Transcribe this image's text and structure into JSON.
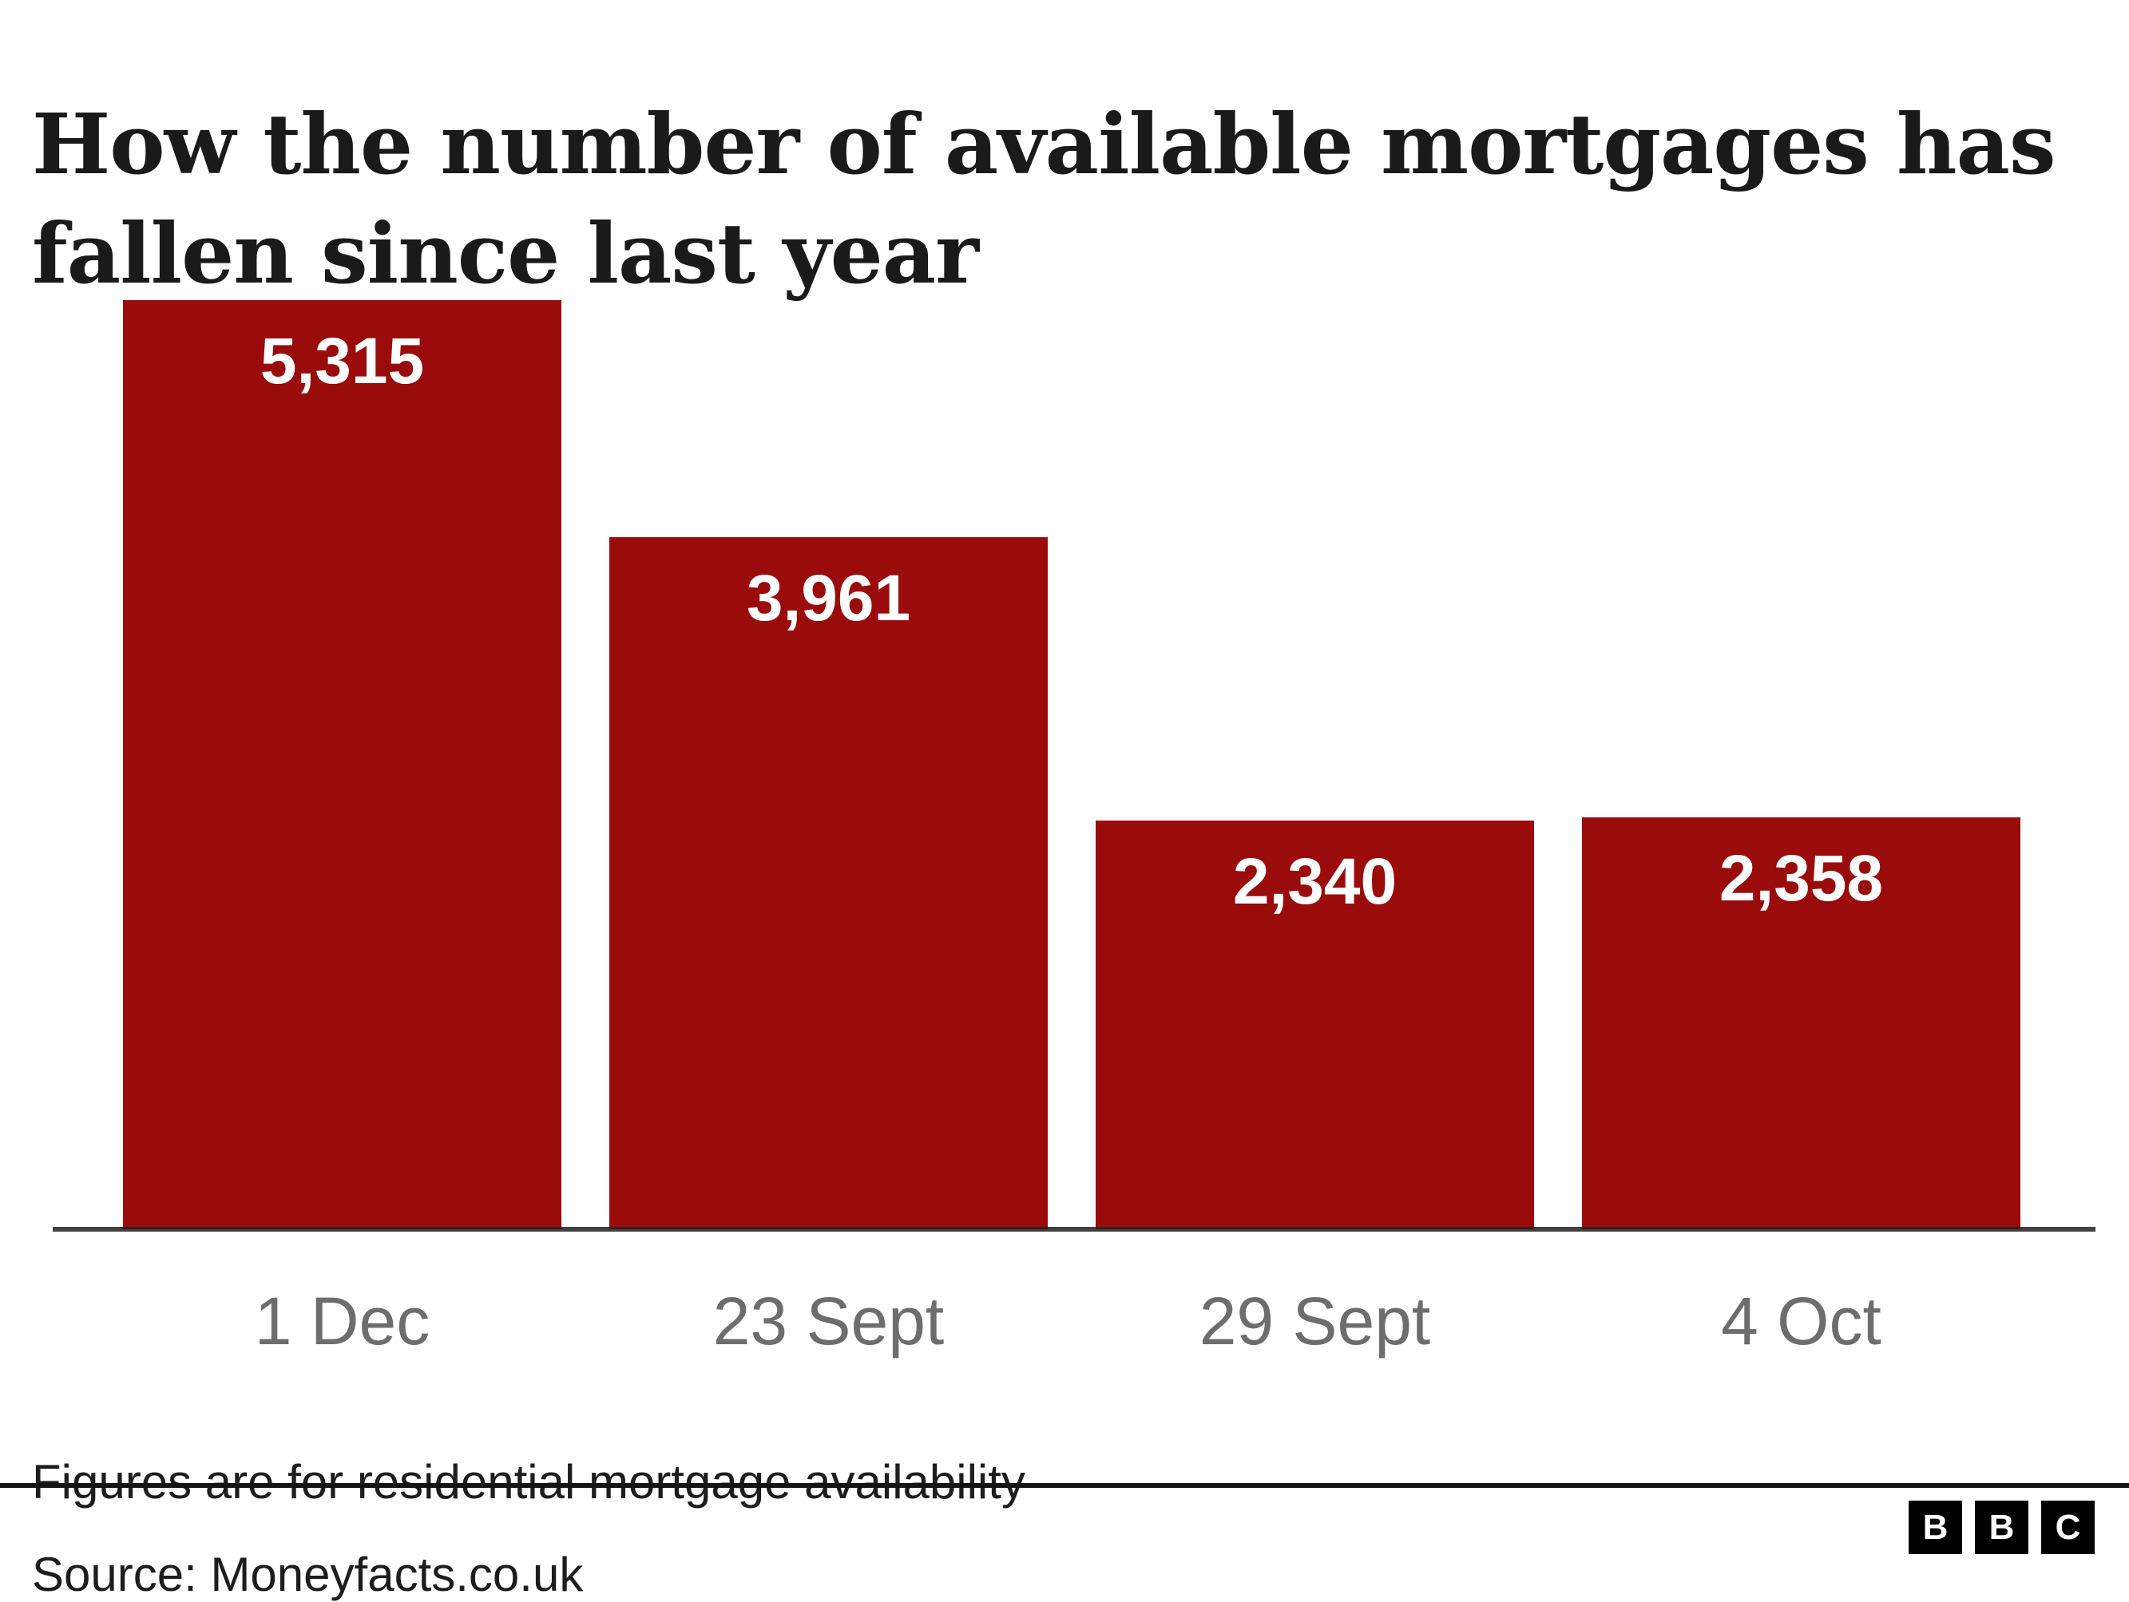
{
  "header": {
    "title_line1": "How the number of available mortgages has",
    "title_line2": "fallen since last year"
  },
  "chart_data": {
    "type": "bar",
    "title": "How the number of available mortgages has fallen since last year",
    "categories": [
      "1 Dec",
      "23 Sept",
      "29 Sept",
      "4 Oct"
    ],
    "values": [
      5315,
      3961,
      2340,
      2358
    ],
    "value_labels": [
      "5,315",
      "3,961",
      "2,340",
      "2,358"
    ],
    "xlabel": "",
    "ylabel": "",
    "ylim": [
      0,
      5315
    ],
    "grid": false,
    "legend": false,
    "bar_color": "#9a0c0c",
    "value_label_color": "#ffffff",
    "axis_label_color": "#6d6d6d",
    "axis_line_color": "#202020"
  },
  "footnote": "Figures are for residential mortgage availability",
  "source": {
    "label": "Source: Moneyfacts.co.uk"
  },
  "logo": {
    "letters": [
      "B",
      "B",
      "C"
    ]
  },
  "colors": {
    "background": "#ffffff",
    "title_text": "#1a1a1a",
    "divider": "#141414"
  }
}
